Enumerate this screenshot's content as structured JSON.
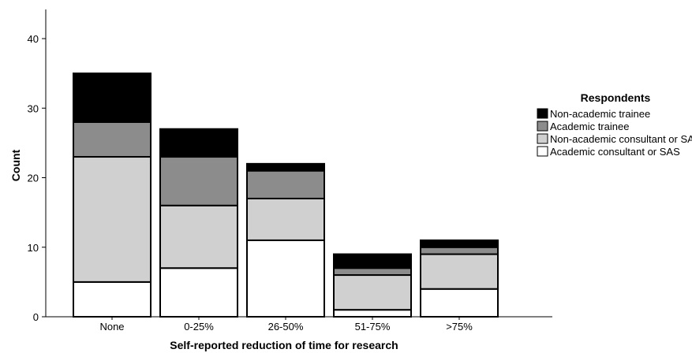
{
  "chart_data": {
    "type": "bar",
    "stacked": true,
    "title": "",
    "xlabel": "Self-reported reduction of time for research",
    "ylabel": "Count",
    "ylim": [
      0,
      45
    ],
    "yticks": [
      0,
      10,
      20,
      30,
      40
    ],
    "categories": [
      "None",
      "0-25%",
      "26-50%",
      "51-75%",
      ">75%"
    ],
    "series": [
      {
        "name": "Academic consultant or SAS",
        "color": "#ffffff",
        "values": [
          5,
          7,
          11,
          1,
          4
        ]
      },
      {
        "name": "Non-academic consultant or SAS",
        "color": "#d0d0d0",
        "values": [
          18,
          9,
          6,
          5,
          5
        ]
      },
      {
        "name": "Academic trainee",
        "color": "#8c8c8c",
        "values": [
          5,
          7,
          4,
          1,
          1
        ]
      },
      {
        "name": "Non-academic trainee",
        "color": "#000000",
        "values": [
          7,
          4,
          1,
          2,
          1
        ]
      }
    ],
    "legend": {
      "title": "Respondents",
      "placement": "right",
      "order": [
        "Non-academic trainee",
        "Academic trainee",
        "Non-academic consultant or SAS",
        "Academic consultant or SAS"
      ]
    },
    "grid": false
  }
}
